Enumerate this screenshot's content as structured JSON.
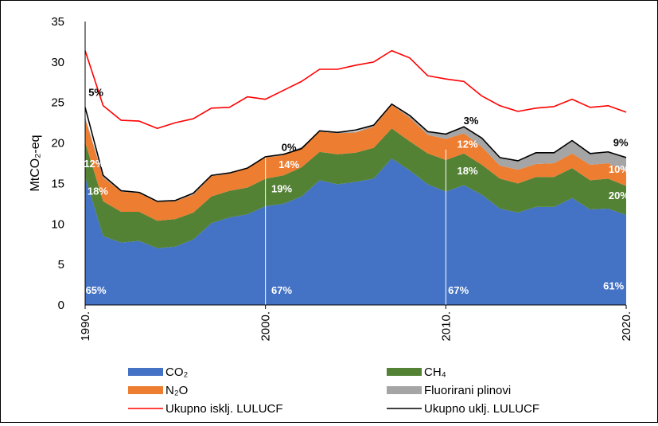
{
  "chart_data": {
    "type": "area",
    "ylabel": "MtCO₂-eq",
    "ylim": [
      0,
      35
    ],
    "yticks": [
      "0",
      "5",
      "10",
      "15",
      "20",
      "25",
      "30",
      "35"
    ],
    "xticks": [
      {
        "x": 1990,
        "label": "1990."
      },
      {
        "x": 2000,
        "label": "2000."
      },
      {
        "x": 2010,
        "label": "2010."
      },
      {
        "x": 2020,
        "label": "2020."
      }
    ],
    "x": [
      1990,
      1991,
      1992,
      1993,
      1994,
      1995,
      1996,
      1997,
      1998,
      1999,
      2000,
      2001,
      2002,
      2003,
      2004,
      2005,
      2006,
      2007,
      2008,
      2009,
      2010,
      2011,
      2012,
      2013,
      2014,
      2015,
      2016,
      2017,
      2018,
      2019,
      2020
    ],
    "stacked_series": [
      {
        "name": "CO₂",
        "color": "#4472C4",
        "values": [
          15.8,
          8.5,
          7.7,
          7.9,
          7.0,
          7.2,
          8.1,
          10.1,
          10.8,
          11.2,
          12.2,
          12.5,
          13.4,
          15.4,
          14.9,
          15.2,
          15.6,
          18.1,
          16.6,
          14.9,
          14.0,
          14.8,
          13.6,
          11.9,
          11.4,
          12.1,
          12.1,
          13.2,
          11.8,
          11.9,
          11.1
        ]
      },
      {
        "name": "CH₄",
        "color": "#548235",
        "values": [
          4.3,
          4.3,
          3.8,
          3.6,
          3.4,
          3.4,
          3.3,
          3.3,
          3.3,
          3.3,
          3.4,
          3.5,
          3.6,
          3.5,
          3.7,
          3.6,
          3.8,
          3.7,
          3.6,
          3.8,
          3.9,
          3.9,
          3.7,
          3.7,
          3.6,
          3.7,
          3.7,
          3.7,
          3.6,
          3.7,
          3.6
        ]
      },
      {
        "name": "N₂O",
        "color": "#ED7D31",
        "values": [
          2.9,
          2.9,
          2.5,
          2.3,
          2.3,
          2.2,
          2.2,
          2.5,
          2.1,
          2.4,
          2.6,
          2.5,
          2.4,
          2.5,
          2.6,
          2.5,
          2.6,
          2.9,
          2.9,
          2.3,
          2.6,
          2.5,
          2.2,
          1.6,
          1.7,
          1.6,
          1.7,
          1.8,
          1.9,
          1.9,
          1.8
        ]
      },
      {
        "name": "Fluorirani plinovi",
        "color": "#A5A5A5",
        "values": [
          0.2,
          0.2,
          0.1,
          0.1,
          0.1,
          0.1,
          0.1,
          0.1,
          0.1,
          0.1,
          0.1,
          0.1,
          0.1,
          0.1,
          0.1,
          0.1,
          0.2,
          0.2,
          0.3,
          0.4,
          0.6,
          0.8,
          1.1,
          1.0,
          1.1,
          1.4,
          1.3,
          1.6,
          1.4,
          1.4,
          1.8
        ]
      }
    ],
    "line_series": [
      {
        "name": "Ukupno isklj. LULUCF",
        "color": "#FF0000",
        "values": [
          31.4,
          24.6,
          22.8,
          22.7,
          21.8,
          22.5,
          23.0,
          24.3,
          24.4,
          25.7,
          25.4,
          26.5,
          27.6,
          29.1,
          29.1,
          29.6,
          30.0,
          31.4,
          30.5,
          28.3,
          27.9,
          27.6,
          25.8,
          24.6,
          23.9,
          24.3,
          24.5,
          25.4,
          24.4,
          24.6,
          23.8
        ]
      },
      {
        "name": "Ukupno uklj. LULUCF",
        "color": "#000000",
        "values": [
          24.4,
          16.0,
          14.1,
          13.9,
          12.8,
          12.9,
          13.8,
          16.0,
          16.3,
          16.9,
          18.3,
          18.6,
          19.3,
          21.5,
          21.3,
          21.6,
          22.2,
          24.8,
          23.4,
          21.4,
          21.1,
          22.0,
          20.6,
          18.2,
          17.8,
          18.8,
          18.8,
          20.3,
          18.7,
          18.9,
          18.2
        ]
      }
    ],
    "annotations": [
      {
        "x": 1990.6,
        "y": 1.4,
        "text": "65%",
        "style": "white"
      },
      {
        "x": 1990.5,
        "y": 17.0,
        "text": "12%",
        "style": "white"
      },
      {
        "x": 1990.7,
        "y": 13.6,
        "text": "18%",
        "style": "white"
      },
      {
        "x": 1990.6,
        "y": 25.8,
        "text": "5%",
        "style": "black"
      },
      {
        "x": 2000.9,
        "y": 1.4,
        "text": "67%",
        "style": "white"
      },
      {
        "x": 2001.3,
        "y": 16.9,
        "text": "14%",
        "style": "white"
      },
      {
        "x": 2000.9,
        "y": 13.9,
        "text": "19%",
        "style": "white"
      },
      {
        "x": 2001.3,
        "y": 19.0,
        "text": "0%",
        "style": "black"
      },
      {
        "x": 2010.7,
        "y": 1.4,
        "text": "67%",
        "style": "white"
      },
      {
        "x": 2011.2,
        "y": 19.4,
        "text": "12%",
        "style": "white"
      },
      {
        "x": 2011.2,
        "y": 16.1,
        "text": "18%",
        "style": "white"
      },
      {
        "x": 2011.4,
        "y": 22.3,
        "text": "3%",
        "style": "black"
      },
      {
        "x": 2019.3,
        "y": 1.9,
        "text": "61%",
        "style": "white"
      },
      {
        "x": 2019.6,
        "y": 16.3,
        "text": "10%",
        "style": "white"
      },
      {
        "x": 2019.6,
        "y": 13.1,
        "text": "20%",
        "style": "white"
      },
      {
        "x": 2019.7,
        "y": 19.6,
        "text": "9%",
        "style": "black"
      }
    ],
    "vertical_guides": [
      2000,
      2010
    ],
    "grid": false,
    "legend_position": "bottom"
  }
}
